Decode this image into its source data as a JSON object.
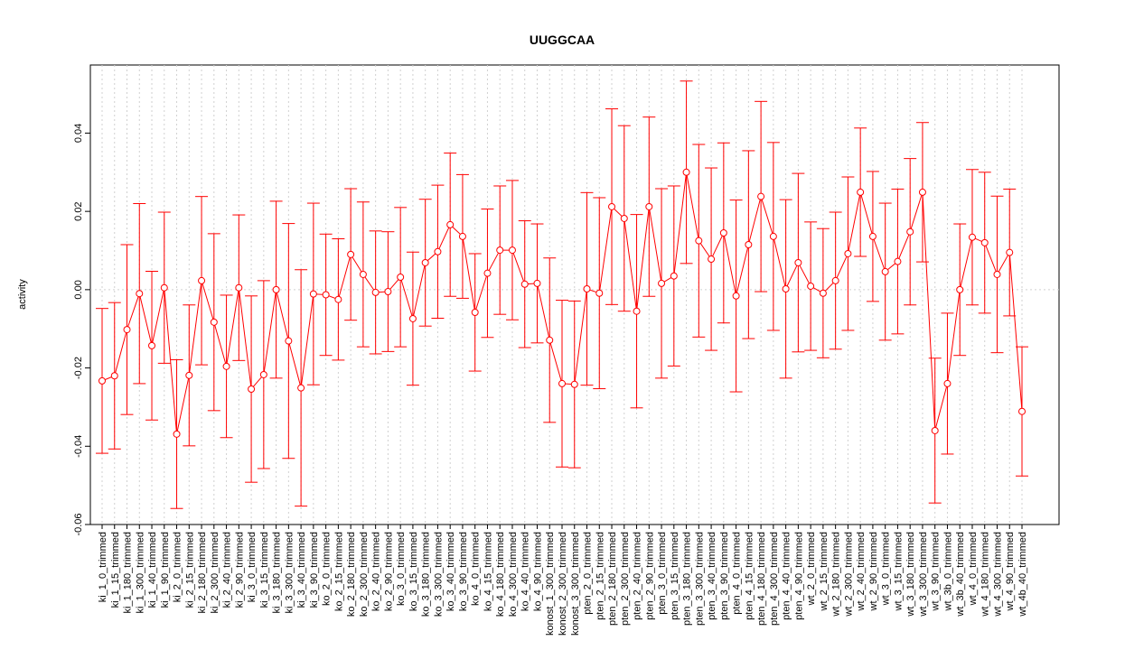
{
  "chart_data": {
    "type": "errorbar",
    "title": "UUGGCAA",
    "y_label": "activity",
    "categories": [
      "ki_1_0_trimmed",
      "ki_1_15_trimmed",
      "ki_1_180_trimmed",
      "ki_1_300_trimmed",
      "ki_1_40_trimmed",
      "ki_1_90_trimmed",
      "ki_2_0_trimmed",
      "ki_2_15_trimmed",
      "ki_2_180_trimmed",
      "ki_2_300_trimmed",
      "ki_2_40_trimmed",
      "ki_2_90_trimmed",
      "ki_3_0_trimmed",
      "ki_3_15_trimmed",
      "ki_3_180_trimmed",
      "ki_3_300_trimmed",
      "ki_3_40_trimmed",
      "ki_3_90_trimmed",
      "ko_2_0_trimmed",
      "ko_2_15_trimmed",
      "ko_2_180_trimmed",
      "ko_2_300_trimmed",
      "ko_2_40_trimmed",
      "ko_2_90_trimmed",
      "ko_3_0_trimmed",
      "ko_3_15_trimmed",
      "ko_3_180_trimmed",
      "ko_3_300_trimmed",
      "ko_3_40_trimmed",
      "ko_3_90_trimmed",
      "ko_4_0_trimmed",
      "ko_4_15_trimmed",
      "ko_4_180_trimmed",
      "ko_4_300_trimmed",
      "ko_4_40_trimmed",
      "ko_4_90_trimmed",
      "konost_1_300_trimmed",
      "konost_2_300_trimmed",
      "konost_3_300_trimmed",
      "pten_2_0_trimmed",
      "pten_2_15_trimmed",
      "pten_2_180_trimmed",
      "pten_2_300_trimmed",
      "pten_2_40_trimmed",
      "pten_2_90_trimmed",
      "pten_3_0_trimmed",
      "pten_3_15_trimmed",
      "pten_3_180_trimmed",
      "pten_3_300_trimmed",
      "pten_3_40_trimmed",
      "pten_3_90_trimmed",
      "pten_4_0_trimmed",
      "pten_4_15_trimmed",
      "pten_4_180_trimmed",
      "pten_4_300_trimmed",
      "pten_4_40_trimmed",
      "pten_4_90_trimmed",
      "wt_2_0_trimmed",
      "wt_2_15_trimmed",
      "wt_2_180_trimmed",
      "wt_2_300_trimmed",
      "wt_2_40_trimmed",
      "wt_2_90_trimmed",
      "wt_3_0_trimmed",
      "wt_3_15_trimmed",
      "wt_3_180_trimmed",
      "wt_3_300_trimmed",
      "wt_3_90_trimmed",
      "wt_3b_0_trimmed",
      "wt_3b_40_trimmed",
      "wt_4_0_trimmed",
      "wt_4_180_trimmed",
      "wt_4_300_trimmed",
      "wt_4_90_trimmed",
      "wt_4b_40_trimmed"
    ],
    "values": [
      -0.0233,
      -0.022,
      -0.0102,
      -0.001,
      -0.0143,
      0.0005,
      -0.0369,
      -0.0219,
      0.0023,
      -0.0083,
      -0.0196,
      0.0005,
      -0.0254,
      -0.0217,
      0.0,
      -0.0131,
      -0.0251,
      -0.0011,
      -0.0013,
      -0.0025,
      0.009,
      0.0039,
      -0.0007,
      -0.0005,
      0.0032,
      -0.0074,
      0.0069,
      0.0097,
      0.0166,
      0.0136,
      -0.0058,
      0.0042,
      0.0101,
      0.0101,
      0.0014,
      0.0016,
      -0.0129,
      -0.024,
      -0.0242,
      0.0002,
      -0.0009,
      0.0212,
      0.0182,
      -0.0055,
      0.0212,
      0.0016,
      0.0035,
      0.03,
      0.0125,
      0.0078,
      0.0145,
      -0.0016,
      0.0115,
      0.0238,
      0.0136,
      0.0002,
      0.0069,
      0.0009,
      -0.0009,
      0.0023,
      0.0092,
      0.0249,
      0.0136,
      0.0046,
      0.0072,
      0.0148,
      0.0249,
      -0.036,
      -0.024,
      0.0,
      0.0134,
      0.012,
      0.0039,
      0.0095,
      -0.0311
    ],
    "errors": [
      0.0185,
      0.0187,
      0.0217,
      0.023,
      0.019,
      0.0193,
      0.019,
      0.018,
      0.0215,
      0.0226,
      0.0182,
      0.0186,
      0.0238,
      0.024,
      0.0226,
      0.03,
      0.0302,
      0.0232,
      0.0155,
      0.0155,
      0.0168,
      0.0185,
      0.0157,
      0.0153,
      0.0178,
      0.017,
      0.0162,
      0.017,
      0.0183,
      0.0158,
      0.015,
      0.0164,
      0.0164,
      0.0178,
      0.0162,
      0.0152,
      0.021,
      0.0213,
      0.0213,
      0.0246,
      0.0244,
      0.025,
      0.0237,
      0.0247,
      0.0229,
      0.0242,
      0.023,
      0.0233,
      0.0246,
      0.0233,
      0.023,
      0.0245,
      0.024,
      0.0243,
      0.024,
      0.0228,
      0.0228,
      0.0164,
      0.0165,
      0.0175,
      0.0196,
      0.0164,
      0.0166,
      0.0175,
      0.0185,
      0.0187,
      0.0178,
      0.0185,
      0.018,
      0.0168,
      0.0173,
      0.018,
      0.02,
      0.0162,
      0.0165
    ],
    "color": "#ff0000",
    "ylim": [
      -0.06,
      0.0574
    ],
    "yticks": [
      -0.06,
      -0.04,
      -0.02,
      {
        "value": 0,
        "label": "0.00"
      },
      0.02,
      0.04
    ],
    "grid": true
  }
}
